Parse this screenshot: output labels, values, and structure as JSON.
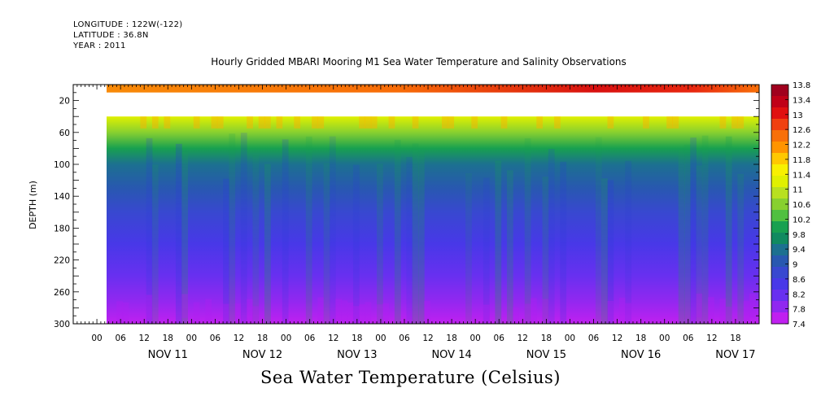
{
  "header": {
    "longitude": "LONGITUDE : 122W(-122)",
    "latitude": "LATITUDE : 36.8N",
    "year": "YEAR : 2011"
  },
  "title": "Hourly Gridded MBARI Mooring M1 Sea Water Temperature and Salinity Observations",
  "footer_title": "Sea Water Temperature (Celsius)",
  "chart_data": {
    "type": "heatmap",
    "title": "Hourly Gridded MBARI Mooring M1 Sea Water Temperature and Salinity Observations",
    "xlabel": "",
    "ylabel": "DEPTH (m)",
    "colorbar_label": "Sea Water Temperature (Celsius)",
    "x_tick_labels": [
      "00",
      "06",
      "12",
      "18",
      "00",
      "06",
      "12",
      "18",
      "00",
      "06",
      "12",
      "18",
      "00",
      "06",
      "12",
      "18",
      "00",
      "06",
      "12",
      "18",
      "00",
      "06",
      "12",
      "18",
      "00",
      "06",
      "12",
      "18"
    ],
    "x_day_labels": [
      "NOV 11",
      "NOV 12",
      "NOV 13",
      "NOV 14",
      "NOV 15",
      "NOV 16",
      "NOV 17"
    ],
    "x_range_hours_since_nov11_00": [
      -12,
      162
    ],
    "y_range": [
      300,
      0
    ],
    "y_ticks": [
      20,
      60,
      100,
      140,
      180,
      220,
      260,
      300
    ],
    "colorbar_levels": [
      13.8,
      13.4,
      13,
      12.6,
      12.2,
      11.8,
      11.4,
      11,
      10.6,
      10.2,
      9.8,
      9.4,
      9,
      8.6,
      8.2,
      7.8,
      7.4
    ],
    "data_begins_hour": -4,
    "no_data_depth_band": [
      10,
      40
    ],
    "depth_profile": [
      {
        "depth": 10,
        "temp": 12.4
      },
      {
        "depth": 40,
        "temp": 11.3
      },
      {
        "depth": 60,
        "temp": 10.7
      },
      {
        "depth": 80,
        "temp": 10.0
      },
      {
        "depth": 100,
        "temp": 9.5
      },
      {
        "depth": 130,
        "temp": 9.1
      },
      {
        "depth": 160,
        "temp": 8.8
      },
      {
        "depth": 200,
        "temp": 8.5
      },
      {
        "depth": 240,
        "temp": 8.2
      },
      {
        "depth": 270,
        "temp": 7.9
      },
      {
        "depth": 300,
        "temp": 7.6
      }
    ],
    "colors": [
      "#a0001e",
      "#c00018",
      "#e01010",
      "#f04010",
      "#f87008",
      "#ff9400",
      "#ffc800",
      "#f8f000",
      "#e0f000",
      "#b8e020",
      "#88d030",
      "#50c040",
      "#18a050",
      "#108a60",
      "#1c7090",
      "#2858b0",
      "#3848d0",
      "#4838e8",
      "#6830f0",
      "#9028f0",
      "#c020f0"
    ]
  }
}
